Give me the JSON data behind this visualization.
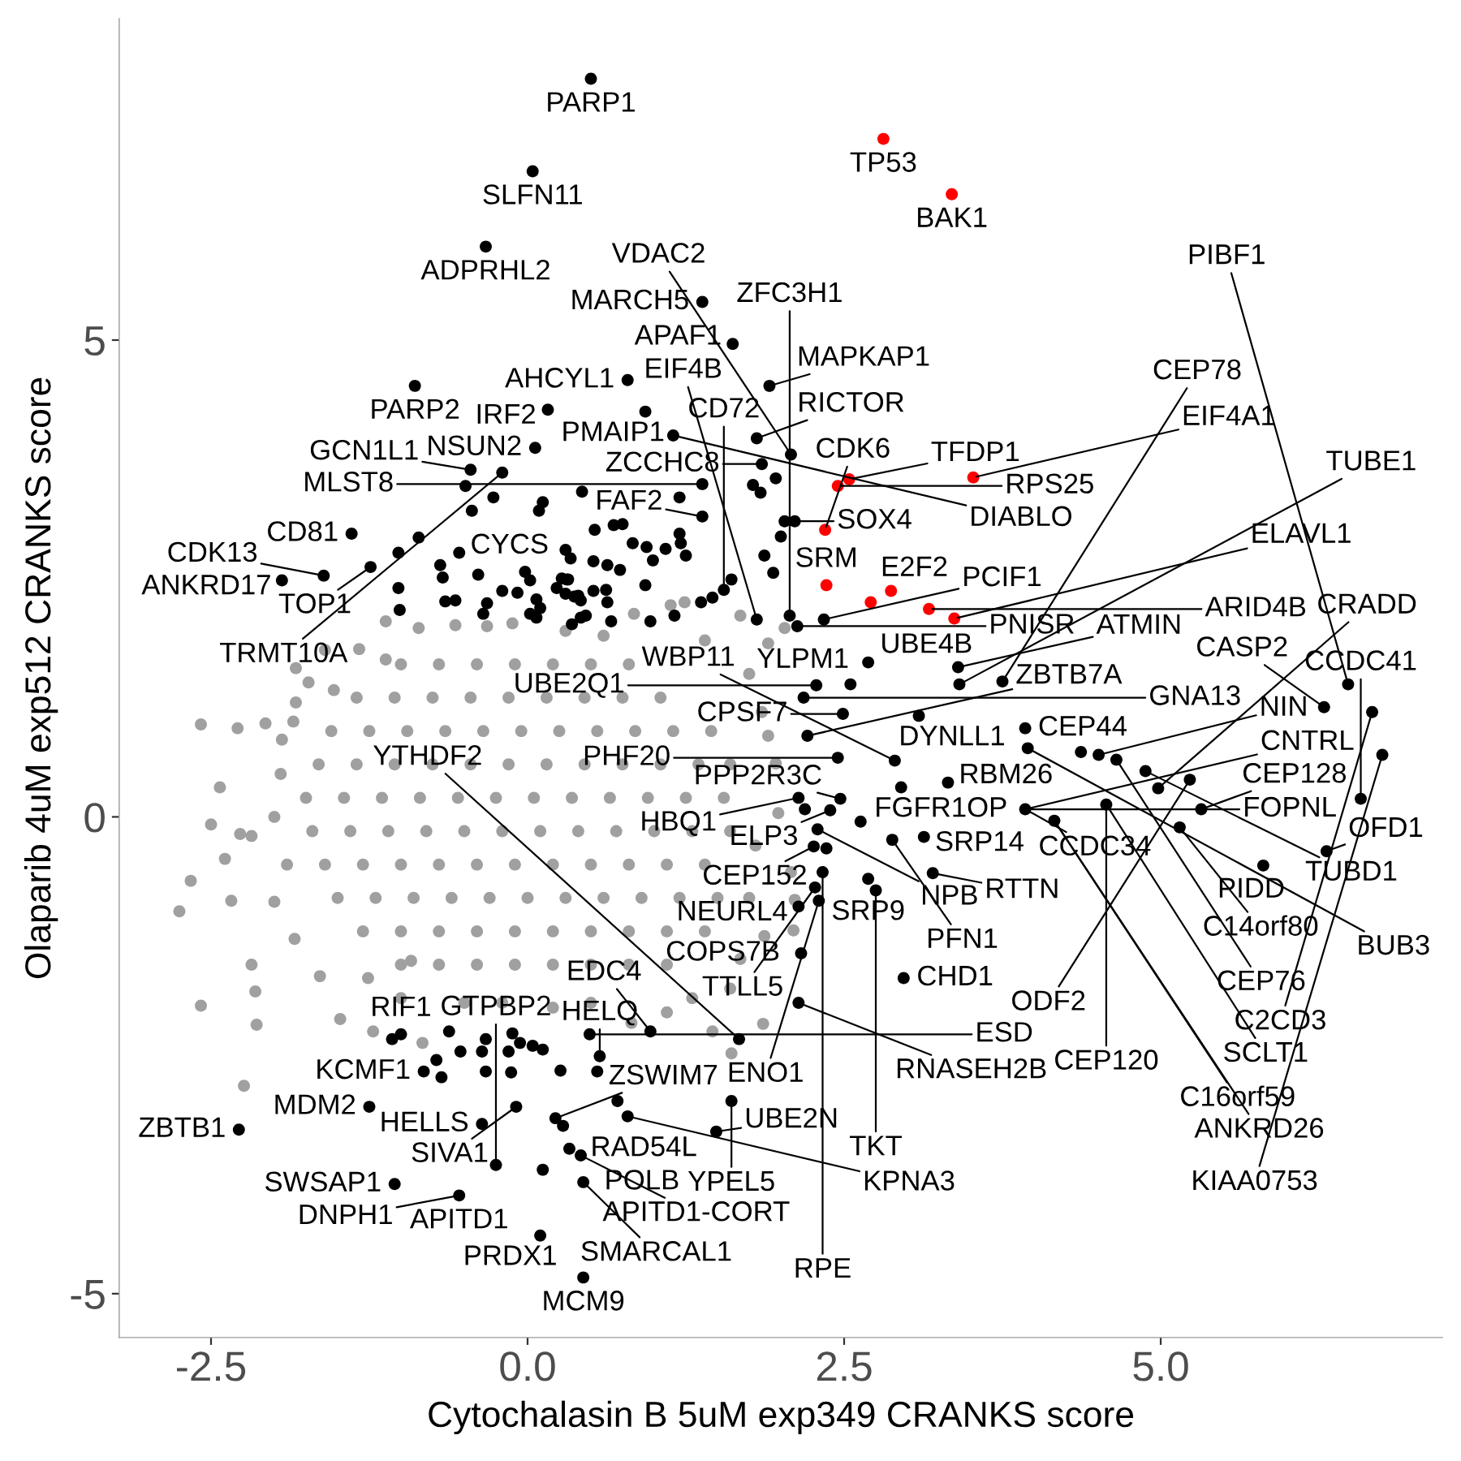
{
  "chart_data": {
    "type": "scatter",
    "xlabel": "Cytochalasin B 5uM exp349 CRANKS score",
    "ylabel": "Olaparib 4uM exp512 CRANKS score",
    "xlim": [
      -3.225,
      7.225
    ],
    "ylim": [
      -5.46,
      8.37
    ],
    "xticks": [
      -2.5,
      {
        "value": 0,
        "label": "0.0"
      },
      2.5,
      {
        "value": 5,
        "label": "5.0"
      }
    ],
    "yticks": [
      -5,
      0,
      5
    ],
    "marker": "circle",
    "series": [
      {
        "color": "#a0a0a0",
        "x": [
          -2.58,
          -2.29,
          -2.07,
          -1.94,
          -2.43,
          -2.5,
          -2.27,
          -2.18,
          -2.39,
          -2.66,
          -2.75,
          -2.34,
          -2.0,
          -2.18,
          -2.15,
          -2.58,
          -2.14,
          -2.24,
          -1.84,
          -1.64,
          -1.48,
          -1.22,
          -0.83,
          -1.26,
          -0.92,
          -1.12,
          -0.86,
          -0.57,
          -1.83,
          -1.73,
          -1.83,
          -1.53,
          -0.12,
          -0.32,
          -1.33,
          -1.12,
          1.13,
          1.24,
          1.68,
          0.84,
          1.9,
          2.03,
          1.96,
          1.98,
          2.08,
          2.1,
          1.87,
          1.86,
          1.61,
          1.46,
          0.82,
          1.68,
          2.11,
          1.75,
          1.85,
          1.9,
          1.8,
          1.75,
          1.6,
          1.3,
          1.1,
          0.5,
          0.2,
          -0.2,
          -0.5,
          -1.0,
          -1.95,
          -1.9,
          -1.85,
          -1.6,
          0.3,
          0.6,
          1.4,
          -2.0,
          -1.0,
          -0.7,
          -0.4,
          -0.1,
          0.2,
          0.5,
          0.8,
          -1.35,
          -1.05,
          -0.75,
          -0.45,
          -0.15,
          0.15,
          0.45,
          0.75,
          1.05,
          -1.55,
          -1.25,
          -0.95,
          -0.65,
          -0.35,
          -0.05,
          0.25,
          0.55,
          0.85,
          1.15,
          1.45,
          -1.65,
          -1.35,
          -1.05,
          -0.75,
          -0.45,
          -0.15,
          0.15,
          0.45,
          0.75,
          1.05,
          1.35,
          1.6,
          -1.75,
          -1.45,
          -1.15,
          -0.85,
          -0.55,
          -0.25,
          0.05,
          0.35,
          0.65,
          0.95,
          1.25,
          1.55,
          -1.7,
          -1.4,
          -1.1,
          -0.8,
          -0.5,
          -0.2,
          0.1,
          0.4,
          0.7,
          1.0,
          1.3,
          1.6,
          -1.6,
          -1.3,
          -1.0,
          -0.7,
          -0.4,
          -0.1,
          0.2,
          0.5,
          0.8,
          1.1,
          1.4,
          -1.5,
          -1.2,
          -0.9,
          -0.6,
          -0.3,
          0.0,
          0.3,
          0.6,
          0.9,
          1.2,
          1.5,
          -1.3,
          -1.0,
          -0.7,
          -0.4,
          -0.1,
          0.2,
          0.5,
          0.8,
          1.1,
          1.4,
          -1.0,
          -0.7,
          -0.4,
          -0.1,
          0.2,
          0.5,
          0.8,
          1.1
        ],
        "values": [
          0.97,
          0.93,
          0.98,
          0.81,
          0.31,
          -0.08,
          -0.18,
          -0.2,
          -0.44,
          -0.67,
          -0.99,
          -0.88,
          -0.89,
          -1.55,
          -1.83,
          -1.98,
          -2.18,
          -2.82,
          -1.28,
          -1.67,
          -2.12,
          -2.25,
          -2.37,
          -1.69,
          -1.51,
          2.05,
          1.98,
          2.01,
          1.56,
          1.41,
          1.2,
          1.33,
          2.03,
          2.0,
          1.76,
          1.65,
          2.22,
          2.25,
          2.11,
          2.13,
          1.82,
          1.98,
          0.56,
          0.04,
          -0.58,
          -1.19,
          -1.25,
          -2.17,
          -2.48,
          -2.25,
          -2.16,
          -1.49,
          -0.87,
          1.5,
          1.1,
          0.85,
          -0.3,
          -0.85,
          -1.8,
          -1.9,
          -2.05,
          -1.95,
          -2.0,
          -1.95,
          -1.95,
          -1.9,
          0.45,
          -0.5,
          1.0,
          1.75,
          1.95,
          1.9,
          1.85,
          0.0,
          1.6,
          1.6,
          1.6,
          1.6,
          1.6,
          1.6,
          1.6,
          1.25,
          1.25,
          1.25,
          1.25,
          1.25,
          1.25,
          1.25,
          1.25,
          1.25,
          0.9,
          0.9,
          0.9,
          0.9,
          0.9,
          0.9,
          0.9,
          0.9,
          0.9,
          0.9,
          0.9,
          0.55,
          0.55,
          0.55,
          0.55,
          0.55,
          0.55,
          0.55,
          0.55,
          0.55,
          0.55,
          0.55,
          0.55,
          0.2,
          0.2,
          0.2,
          0.2,
          0.2,
          0.2,
          0.2,
          0.2,
          0.2,
          0.2,
          0.2,
          0.2,
          -0.15,
          -0.15,
          -0.15,
          -0.15,
          -0.15,
          -0.15,
          -0.15,
          -0.15,
          -0.15,
          -0.15,
          -0.15,
          -0.15,
          -0.5,
          -0.5,
          -0.5,
          -0.5,
          -0.5,
          -0.5,
          -0.5,
          -0.5,
          -0.5,
          -0.5,
          -0.5,
          -0.85,
          -0.85,
          -0.85,
          -0.85,
          -0.85,
          -0.85,
          -0.85,
          -0.85,
          -0.85,
          -0.85,
          -0.85,
          -1.2,
          -1.2,
          -1.2,
          -1.2,
          -1.2,
          -1.2,
          -1.2,
          -1.2,
          -1.2,
          -1.2,
          -1.55,
          -1.55,
          -1.55,
          -1.55,
          -1.55,
          -1.55,
          -1.55,
          -1.55
        ]
      },
      {
        "color": "#000000",
        "x": [
          0.5,
          0.04,
          -0.33,
          1.38,
          1.62,
          0.79,
          -0.89,
          1.91,
          0.16,
          0.93,
          1.15,
          1.81,
          2.08,
          0.06,
          1.85,
          -0.45,
          -0.2,
          1.38,
          1.38,
          2.11,
          -1.39,
          -0.54,
          -1.24,
          -1.61,
          -1.94,
          1.55,
          1.81,
          2.13,
          2.07,
          2.34,
          2.69,
          3.4,
          3.75,
          3.41,
          2.55,
          2.28,
          2.18,
          2.49,
          3.09,
          2.21,
          2.45,
          2.9,
          2.14,
          2.47,
          2.95,
          3.32,
          3.93,
          2.39,
          2.29,
          2.26,
          3.13,
          3.2,
          2.88,
          2.69,
          2.75,
          2.33,
          2.27,
          2.3,
          2.14,
          2.16,
          2.97,
          2.14,
          0.97,
          0.49,
          1.67,
          0.57,
          1.61,
          0.79,
          1.49,
          0.33,
          0.42,
          0.44,
          0.44,
          -1.0,
          -0.82,
          -1.25,
          -2.28,
          -0.36,
          -0.09,
          0.22,
          -0.25,
          -1.05,
          -0.54,
          0.1,
          3.93,
          3.95,
          4.65,
          4.51,
          4.88,
          5.23,
          5.32,
          5.15,
          4.98,
          4.57,
          4.16,
          6.29,
          6.67,
          6.48,
          6.75,
          6.58,
          6.31,
          5.81,
          -0.49,
          -0.27,
          0.12,
          0.09,
          0.43,
          -0.44,
          -0.86,
          -1.02,
          -0.69,
          -0.67,
          -1.02,
          -1.01,
          -0.65,
          -0.57,
          -0.39,
          -0.2,
          -0.08,
          -0.02,
          0.02,
          -0.32,
          -0.35,
          0.07,
          0.1,
          0.02,
          0.07,
          0.3,
          0.34,
          0.27,
          0.31,
          0.23,
          0.3,
          0.37,
          0.42,
          0.35,
          0.42,
          1.78,
          1.84,
          1.96,
          1.2,
          2.03,
          2.0,
          0.53,
          0.68,
          0.75,
          0.83,
          0.94,
          0.99,
          1.09,
          1.2,
          1.21,
          1.25,
          0.52,
          0.63,
          0.73,
          1.87,
          1.94,
          0.4,
          0.52,
          0.62,
          0.63,
          0.93,
          1.61,
          1.46,
          1.37,
          1.16,
          0.97,
          0.66,
          0.46,
          0.32,
          2.19,
          2.63,
          2.36,
          -1.07,
          -0.62,
          -0.72,
          -0.53,
          -0.36,
          -0.33,
          -0.15,
          -0.12,
          -0.06,
          0.04,
          0.12,
          -0.68,
          -0.33,
          -0.13,
          0.26,
          0.28,
          0.12,
          0.55,
          0.71,
          4.37
        ],
        "values": [
          7.74,
          6.77,
          5.98,
          5.4,
          4.96,
          4.58,
          4.52,
          4.52,
          4.27,
          4.25,
          4.0,
          3.97,
          3.8,
          3.87,
          3.7,
          3.64,
          3.61,
          3.49,
          3.15,
          3.1,
          2.97,
          2.77,
          2.62,
          2.53,
          2.48,
          2.38,
          2.07,
          2.0,
          2.11,
          2.07,
          1.62,
          1.57,
          1.42,
          1.39,
          1.39,
          1.38,
          1.25,
          1.08,
          1.06,
          0.85,
          0.62,
          0.59,
          0.2,
          0.19,
          0.31,
          0.36,
          0.08,
          0.07,
          -0.13,
          -0.31,
          -0.21,
          -0.59,
          -0.24,
          -0.65,
          -0.77,
          -0.58,
          -0.74,
          -0.88,
          -0.94,
          -1.43,
          -1.69,
          -1.95,
          -2.25,
          -2.28,
          -2.33,
          -2.51,
          -2.98,
          -3.14,
          -3.3,
          -3.48,
          -3.55,
          -3.83,
          -4.83,
          -2.28,
          -2.67,
          -3.04,
          -3.28,
          -3.22,
          -3.04,
          -3.16,
          -3.65,
          -3.85,
          -3.97,
          -4.39,
          0.93,
          0.72,
          0.6,
          0.65,
          0.48,
          0.39,
          0.08,
          -0.11,
          0.3,
          0.13,
          -0.04,
          1.15,
          1.1,
          1.39,
          0.65,
          0.19,
          -0.36,
          -0.51,
          3.47,
          3.35,
          3.3,
          3.21,
          3.41,
          3.21,
          2.93,
          2.77,
          2.64,
          2.51,
          2.4,
          2.17,
          2.26,
          2.27,
          2.54,
          2.37,
          2.35,
          2.57,
          2.48,
          2.24,
          2.13,
          2.28,
          2.19,
          2.13,
          2.09,
          2.8,
          2.71,
          2.5,
          2.49,
          2.4,
          2.34,
          2.31,
          2.27,
          2.02,
          2.09,
          3.48,
          3.4,
          3.55,
          3.35,
          3.1,
          2.94,
          3.01,
          3.06,
          3.07,
          2.87,
          2.83,
          2.69,
          2.81,
          2.97,
          2.87,
          2.74,
          2.68,
          2.64,
          2.59,
          2.74,
          2.56,
          2.32,
          2.37,
          2.38,
          2.25,
          2.43,
          2.49,
          2.3,
          2.25,
          2.11,
          2.05,
          2.05,
          2.11,
          2.49,
          0.08,
          -0.05,
          -0.33,
          -2.33,
          -2.25,
          -2.55,
          -2.46,
          -2.46,
          -2.33,
          -2.46,
          -2.27,
          -2.37,
          -2.4,
          -2.44,
          -2.73,
          -2.67,
          -2.68,
          -2.66,
          -3.24,
          -3.7,
          -2.67,
          -2.98,
          0.68
        ]
      },
      {
        "color": "#ff0000",
        "x": [
          2.81,
          3.35,
          3.52,
          2.45,
          2.54,
          2.35,
          2.36,
          2.87,
          2.71,
          3.17,
          3.37
        ],
        "values": [
          7.11,
          6.53,
          3.56,
          3.47,
          3.54,
          3.01,
          2.43,
          2.37,
          2.25,
          2.18,
          2.08
        ]
      }
    ],
    "annotations": [
      {
        "text": "PARP1",
        "x": 0.5,
        "y": 7.74
      },
      {
        "text": "TP53",
        "x": 2.81,
        "y": 7.11
      },
      {
        "text": "SLFN11",
        "x": 0.04,
        "y": 6.77
      },
      {
        "text": "BAK1",
        "x": 3.35,
        "y": 6.53
      },
      {
        "text": "ADPRHL2",
        "x": -0.33,
        "y": 5.98
      },
      {
        "text": "MARCH5",
        "x": 1.38,
        "y": 5.4
      },
      {
        "text": "APAF1",
        "x": 1.62,
        "y": 4.96
      },
      {
        "text": "AHCYL1",
        "x": 0.79,
        "y": 4.58
      },
      {
        "text": "PARP2",
        "x": -0.89,
        "y": 4.52
      },
      {
        "text": "MAPKAP1",
        "x": 1.91,
        "y": 4.52
      },
      {
        "text": "IRF2",
        "x": 0.16,
        "y": 4.27
      },
      {
        "text": "PMAIP1",
        "x": 0.93,
        "y": 4.25
      },
      {
        "text": "DIABLO",
        "x": 1.15,
        "y": 4.0
      },
      {
        "text": "RICTOR",
        "x": 1.81,
        "y": 3.97
      },
      {
        "text": "VDAC2",
        "x": 2.08,
        "y": 3.8
      },
      {
        "text": "NSUN2",
        "x": 0.06,
        "y": 3.87
      },
      {
        "text": "TFDP1",
        "x": 2.54,
        "y": 3.54
      },
      {
        "text": "RPS25",
        "x": 2.45,
        "y": 3.47
      },
      {
        "text": "ZCCHC8",
        "x": 1.85,
        "y": 3.7
      },
      {
        "text": "GCN1L1",
        "x": -0.45,
        "y": 3.64
      },
      {
        "text": "TRMT10A",
        "x": -0.2,
        "y": 3.61
      },
      {
        "text": "MLST8",
        "x": 1.38,
        "y": 3.49
      },
      {
        "text": "EIF4A1",
        "x": 3.52,
        "y": 3.56
      },
      {
        "text": "CDK6",
        "x": 2.35,
        "y": 3.01
      },
      {
        "text": "SOX4",
        "x": 2.11,
        "y": 3.1
      },
      {
        "text": "FAF2",
        "x": 1.38,
        "y": 3.15
      },
      {
        "text": "CD81",
        "x": -1.39,
        "y": 2.97
      },
      {
        "text": "CYCS",
        "x": -0.54,
        "y": 2.77
      },
      {
        "text": "TOP1",
        "x": -1.24,
        "y": 2.62
      },
      {
        "text": "CDK13",
        "x": -1.61,
        "y": 2.53
      },
      {
        "text": "ANKRD17",
        "x": -1.94,
        "y": 2.48
      },
      {
        "text": "SRM",
        "x": 2.36,
        "y": 2.43
      },
      {
        "text": "E2F2",
        "x": 2.87,
        "y": 2.37
      },
      {
        "text": "ARID4B",
        "x": 3.17,
        "y": 2.18
      },
      {
        "text": "ELAVL1",
        "x": 3.37,
        "y": 2.08
      },
      {
        "text": "CD72",
        "x": 1.55,
        "y": 2.38
      },
      {
        "text": "EIF4B",
        "x": 1.81,
        "y": 2.07
      },
      {
        "text": "PNISR",
        "x": 2.13,
        "y": 2.0
      },
      {
        "text": "ZFC3H1",
        "x": 2.07,
        "y": 2.11
      },
      {
        "text": "PCIF1",
        "x": 2.34,
        "y": 2.07
      },
      {
        "text": "UBE4B",
        "x": 2.69,
        "y": 1.62
      },
      {
        "text": "ATMIN",
        "x": 3.4,
        "y": 1.57
      },
      {
        "text": "CEP78",
        "x": 3.75,
        "y": 1.42
      },
      {
        "text": "TUBE1",
        "x": 3.41,
        "y": 1.39
      },
      {
        "text": "YLPM1",
        "x": 2.55,
        "y": 1.39
      },
      {
        "text": "UBE2Q1",
        "x": 2.28,
        "y": 1.38
      },
      {
        "text": "GNA13",
        "x": 2.18,
        "y": 1.25
      },
      {
        "text": "CPSF7",
        "x": 2.49,
        "y": 1.08
      },
      {
        "text": "DYNLL1",
        "x": 3.09,
        "y": 1.06
      },
      {
        "text": "ZBTB7A",
        "x": 2.21,
        "y": 0.85
      },
      {
        "text": "PHF20",
        "x": 2.45,
        "y": 0.62
      },
      {
        "text": "WBP11",
        "x": 2.9,
        "y": 0.59
      },
      {
        "text": "HBQ1",
        "x": 2.14,
        "y": 0.2
      },
      {
        "text": "PPP2R3C",
        "x": 2.47,
        "y": 0.19
      },
      {
        "text": "FGFR1OP",
        "x": 2.95,
        "y": 0.31
      },
      {
        "text": "RBM26",
        "x": 3.32,
        "y": 0.36
      },
      {
        "text": "CCDC34",
        "x": 3.93,
        "y": 0.08
      },
      {
        "text": "CNTRL",
        "x": 3.93,
        "y": 0.08
      },
      {
        "text": "FOPNL",
        "x": 3.93,
        "y": 0.08
      },
      {
        "text": "ELP3",
        "x": 2.39,
        "y": 0.07
      },
      {
        "text": "NPB",
        "x": 2.29,
        "y": -0.13
      },
      {
        "text": "CEP152",
        "x": 2.26,
        "y": -0.31
      },
      {
        "text": "SRP14",
        "x": 3.13,
        "y": -0.21
      },
      {
        "text": "RTTN",
        "x": 3.2,
        "y": -0.59
      },
      {
        "text": "PFN1",
        "x": 2.88,
        "y": -0.24
      },
      {
        "text": "SRP9",
        "x": 2.69,
        "y": -0.65
      },
      {
        "text": "TKT",
        "x": 2.75,
        "y": -0.77
      },
      {
        "text": "RPE",
        "x": 2.33,
        "y": -0.58
      },
      {
        "text": "TTLL5",
        "x": 2.27,
        "y": -0.74
      },
      {
        "text": "ENO1",
        "x": 2.3,
        "y": -0.88
      },
      {
        "text": "NEURL4",
        "x": 2.14,
        "y": -0.94
      },
      {
        "text": "COPS7B",
        "x": 2.16,
        "y": -1.43
      },
      {
        "text": "CHD1",
        "x": 2.97,
        "y": -1.69
      },
      {
        "text": "RNASEH2B",
        "x": 2.14,
        "y": -1.95
      },
      {
        "text": "EDC4",
        "x": 0.97,
        "y": -2.25
      },
      {
        "text": "ESD",
        "x": 0.49,
        "y": -2.28
      },
      {
        "text": "YTHDF2",
        "x": 1.67,
        "y": -2.33
      },
      {
        "text": "HELQ",
        "x": 0.57,
        "y": -2.51
      },
      {
        "text": "YPEL5",
        "x": 1.61,
        "y": -2.98
      },
      {
        "text": "KPNA3",
        "x": 0.79,
        "y": -3.14
      },
      {
        "text": "UBE2N",
        "x": 1.49,
        "y": -3.3
      },
      {
        "text": "RAD54L",
        "x": 0.33,
        "y": -3.48
      },
      {
        "text": "APITD1-CORT",
        "x": 0.42,
        "y": -3.55
      },
      {
        "text": "POLB",
        "x": 0.44,
        "y": -3.83
      },
      {
        "text": "SMARCAL1",
        "x": 0.44,
        "y": -3.83
      },
      {
        "text": "MCM9",
        "x": 0.44,
        "y": -4.83
      },
      {
        "text": "RIF1",
        "x": -1.0,
        "y": -2.28
      },
      {
        "text": "KCMF1",
        "x": -0.82,
        "y": -2.67
      },
      {
        "text": "MDM2",
        "x": -1.25,
        "y": -3.04
      },
      {
        "text": "ZBTB1",
        "x": -2.28,
        "y": -3.28
      },
      {
        "text": "HELLS",
        "x": -0.36,
        "y": -3.22
      },
      {
        "text": "SIVA1",
        "x": -0.09,
        "y": -3.04
      },
      {
        "text": "ZSWIM7",
        "x": 0.22,
        "y": -3.16
      },
      {
        "text": "GTPBP2",
        "x": -0.25,
        "y": -3.65
      },
      {
        "text": "SWSAP1",
        "x": -1.05,
        "y": -3.85
      },
      {
        "text": "APITD1",
        "x": -0.54,
        "y": -3.97
      },
      {
        "text": "DNPH1",
        "x": -0.54,
        "y": -3.97
      },
      {
        "text": "PRDX1",
        "x": 0.1,
        "y": -4.39
      },
      {
        "text": "CEP44",
        "x": 3.93,
        "y": 0.93
      },
      {
        "text": "BUB3",
        "x": 3.95,
        "y": 0.72
      },
      {
        "text": "CEP76",
        "x": 4.65,
        "y": 0.6
      },
      {
        "text": "NIN",
        "x": 4.51,
        "y": 0.65
      },
      {
        "text": "TUBD1",
        "x": 4.88,
        "y": 0.48
      },
      {
        "text": "ODF2",
        "x": 5.23,
        "y": 0.39
      },
      {
        "text": "CEP128",
        "x": 5.32,
        "y": 0.08
      },
      {
        "text": "C14orf80",
        "x": 5.15,
        "y": -0.11
      },
      {
        "text": "CRADD",
        "x": 4.98,
        "y": 0.3
      },
      {
        "text": "CEP120",
        "x": 4.57,
        "y": 0.13
      },
      {
        "text": "SCLT1",
        "x": 4.57,
        "y": 0.13
      },
      {
        "text": "ANKRD26",
        "x": 4.16,
        "y": -0.04
      },
      {
        "text": "C16orf59",
        "x": 4.16,
        "y": -0.04
      },
      {
        "text": "CASP2",
        "x": 6.29,
        "y": 1.15
      },
      {
        "text": "C2CD3",
        "x": 6.67,
        "y": 1.1
      },
      {
        "text": "PIBF1",
        "x": 6.48,
        "y": 1.39
      },
      {
        "text": "KIAA0753",
        "x": 6.75,
        "y": 0.65
      },
      {
        "text": "CCDC41",
        "x": 6.58,
        "y": 0.19
      },
      {
        "text": "OFD1",
        "x": 6.31,
        "y": -0.36
      },
      {
        "text": "PIDD",
        "x": 5.81,
        "y": -0.51
      }
    ]
  }
}
